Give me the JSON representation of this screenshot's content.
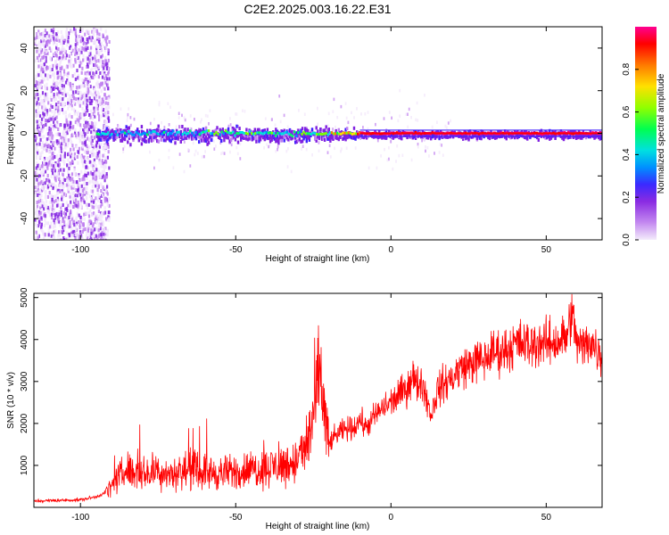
{
  "title": "C2E2.2025.003.16.22.E31",
  "chart_data": [
    {
      "type": "heatmap",
      "xlabel": "Height of straight line (km)",
      "ylabel": "Frequency (Hz)",
      "xlim": [
        -115,
        68
      ],
      "ylim": [
        -50,
        50
      ],
      "xticks": [
        -100,
        -50,
        0,
        50
      ],
      "yticks": [
        -40,
        -20,
        0,
        20,
        40
      ],
      "xtick_labels": [
        "-100",
        "-50",
        "0",
        "50"
      ],
      "ytick_labels": [
        "-40",
        "-20",
        "0",
        "20",
        "40"
      ],
      "colorbar": {
        "label": "Normalized spectral amplitude",
        "range": [
          0,
          1
        ],
        "ticks": [
          0.0,
          0.2,
          0.4,
          0.6,
          0.8
        ],
        "tick_labels": [
          "0.0",
          "0.2",
          "0.4",
          "0.6",
          "0.8"
        ],
        "colors": [
          "#f2e6fb",
          "#c080f0",
          "#8020e0",
          "#4020ff",
          "#0090ff",
          "#00e0e0",
          "#00ff60",
          "#80ff00",
          "#ffe000",
          "#ff8000",
          "#ff0000",
          "#ff0080"
        ]
      },
      "description": "Narrow carrier band near 0 Hz from about -95 km to 68 km, broadband noise below about -92 km",
      "band_center_hz": 0
    },
    {
      "type": "line",
      "xlabel": "Height of straight line (km)",
      "ylabel": "SNR (10 * v/v)",
      "xlim": [
        -115,
        68
      ],
      "ylim": [
        0,
        5100
      ],
      "xticks": [
        -100,
        -50,
        0,
        50
      ],
      "yticks": [
        1000,
        2000,
        3000,
        4000,
        5000
      ],
      "xtick_labels": [
        "-100",
        "-50",
        "0",
        "50"
      ],
      "ytick_labels": [
        "1000",
        "2000",
        "3000",
        "4000",
        "5000"
      ],
      "line_color": "#ff0000",
      "series": [
        {
          "x": [
            -115,
            -110,
            -105,
            -100,
            -95,
            -92,
            -90,
            -88,
            -85,
            -80,
            -75,
            -70,
            -65,
            -60,
            -55,
            -50,
            -45,
            -40,
            -35,
            -30,
            -27,
            -25,
            -23,
            -22,
            -21,
            -20,
            -18,
            -15,
            -12,
            -10,
            -8,
            -5,
            -2,
            0,
            3,
            5,
            7,
            8,
            10,
            13,
            15,
            18,
            20,
            22,
            25,
            28,
            30,
            33,
            35,
            38,
            40,
            43,
            45,
            48,
            50,
            53,
            55,
            57,
            58,
            60,
            62,
            64,
            66,
            68
          ],
          "y": [
            150,
            160,
            170,
            180,
            250,
            350,
            500,
            700,
            900,
            800,
            850,
            800,
            900,
            850,
            800,
            850,
            900,
            950,
            1000,
            1100,
            1500,
            2200,
            3000,
            2900,
            1900,
            1500,
            1700,
            1850,
            1900,
            2100,
            1900,
            2200,
            2400,
            2500,
            2700,
            2800,
            3200,
            2900,
            3000,
            2200,
            2800,
            3000,
            3100,
            3300,
            3400,
            3500,
            3500,
            3700,
            3700,
            3800,
            3900,
            3900,
            3850,
            3950,
            3900,
            3950,
            4000,
            4100,
            4700,
            3900,
            3800,
            4000,
            3800,
            3600
          ]
        }
      ]
    }
  ]
}
